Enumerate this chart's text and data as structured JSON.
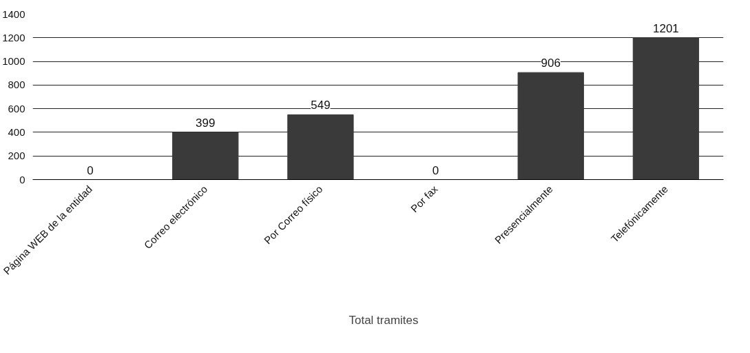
{
  "chart_data": {
    "type": "bar",
    "categories": [
      "Página WEB de la entidad",
      "Correo electrónico",
      "Por Correo físico",
      "Por fax",
      "Presencialmente",
      "Telefónicamente"
    ],
    "series": [
      {
        "name": "Total tramites",
        "color": "#3a3a3a",
        "values": [
          0,
          399,
          549,
          0,
          906,
          1201
        ]
      }
    ],
    "ylim": [
      0,
      1400
    ],
    "yticks": [
      0,
      200,
      400,
      600,
      800,
      1000,
      1200,
      1400
    ],
    "grid": "y",
    "legend": "bottom",
    "data_labels": true
  }
}
